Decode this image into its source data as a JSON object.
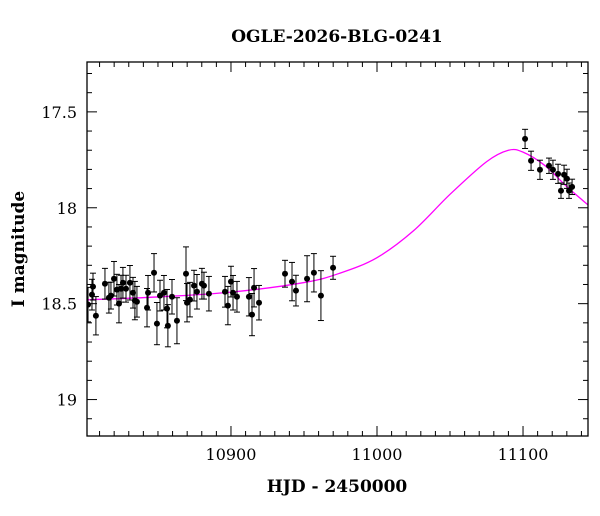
{
  "chart_data": {
    "type": "scatter",
    "title": "OGLE-2026-BLG-0241",
    "xlabel": "HJD - 2450000",
    "ylabel": "I magnitude",
    "xlim": [
      10801.4,
      11144.5
    ],
    "ylim": [
      19.19,
      17.24
    ],
    "y_inverted": true,
    "grid": false,
    "x_ticks": [
      "10900",
      "11000",
      "11100"
    ],
    "x_tick_values": [
      10900,
      11000,
      11100
    ],
    "y_ticks": [
      "17.5",
      "18",
      "18.5",
      "19"
    ],
    "y_tick_values": [
      17.5,
      18,
      18.5,
      19
    ],
    "colors": {
      "data": "#000000",
      "model": "#ff00ff"
    },
    "series": [
      {
        "kind": "data-with-errorbars",
        "x": [
          10802.1,
          10804.8,
          10805.5,
          10807.5,
          10813.7,
          10816.4,
          10817.8,
          10819.9,
          10821.9,
          10823.3,
          10824.7,
          10826.0,
          10828.1,
          10830.8,
          10832.9,
          10834.2,
          10835.6,
          10842.5,
          10843.2,
          10847.3,
          10849.3,
          10851.4,
          10854.1,
          10856.2,
          10856.8,
          10859.6,
          10863.0,
          10869.2,
          10869.9,
          10871.9,
          10874.7,
          10876.7,
          10880.1,
          10881.5,
          10884.9,
          10895.9,
          10897.9,
          10900.0,
          10901.4,
          10904.1,
          10912.3,
          10914.4,
          10915.8,
          10919.2,
          10937.0,
          10941.8,
          10944.5,
          10952.1,
          10956.8,
          10961.6,
          10969.9,
          11101.4,
          11105.5,
          11111.6,
          11117.8,
          11120.5,
          11124.0,
          11126.0,
          11128.1,
          11130.1,
          11131.5,
          11133.6
        ],
        "y": [
          18.505,
          18.453,
          18.411,
          18.563,
          18.396,
          18.469,
          18.458,
          18.37,
          18.427,
          18.5,
          18.422,
          18.391,
          18.422,
          18.391,
          18.443,
          18.484,
          18.49,
          18.521,
          18.443,
          18.339,
          18.604,
          18.458,
          18.443,
          18.526,
          18.615,
          18.464,
          18.589,
          18.344,
          18.495,
          18.479,
          18.406,
          18.438,
          18.396,
          18.406,
          18.448,
          18.438,
          18.51,
          18.385,
          18.443,
          18.464,
          18.464,
          18.557,
          18.417,
          18.495,
          18.344,
          18.385,
          18.432,
          18.37,
          18.339,
          18.458,
          18.313,
          17.641,
          17.755,
          17.802,
          17.781,
          17.802,
          17.823,
          17.911,
          17.828,
          17.849,
          17.911,
          17.891
        ],
        "err": [
          0.09,
          0.08,
          0.07,
          0.1,
          0.08,
          0.08,
          0.07,
          0.09,
          0.08,
          0.1,
          0.07,
          0.08,
          0.07,
          0.09,
          0.08,
          0.1,
          0.08,
          0.1,
          0.09,
          0.1,
          0.11,
          0.08,
          0.09,
          0.1,
          0.11,
          0.09,
          0.12,
          0.14,
          0.1,
          0.09,
          0.08,
          0.09,
          0.08,
          0.07,
          0.09,
          0.08,
          0.1,
          0.08,
          0.09,
          0.08,
          0.1,
          0.11,
          0.1,
          0.09,
          0.07,
          0.1,
          0.08,
          0.12,
          0.1,
          0.13,
          0.06,
          0.05,
          0.05,
          0.05,
          0.04,
          0.05,
          0.05,
          0.04,
          0.05,
          0.05,
          0.04,
          0.04
        ]
      },
      {
        "kind": "model-curve",
        "x": [
          10801.4,
          10850,
          10900,
          10950,
          10975,
          11000,
          11025,
          11050,
          11075,
          11090,
          11100,
          11115,
          11130,
          11144.5
        ],
        "y": [
          18.48,
          18.465,
          18.44,
          18.39,
          18.34,
          18.26,
          18.12,
          17.93,
          17.76,
          17.7,
          17.71,
          17.78,
          17.89,
          17.985
        ]
      }
    ]
  }
}
